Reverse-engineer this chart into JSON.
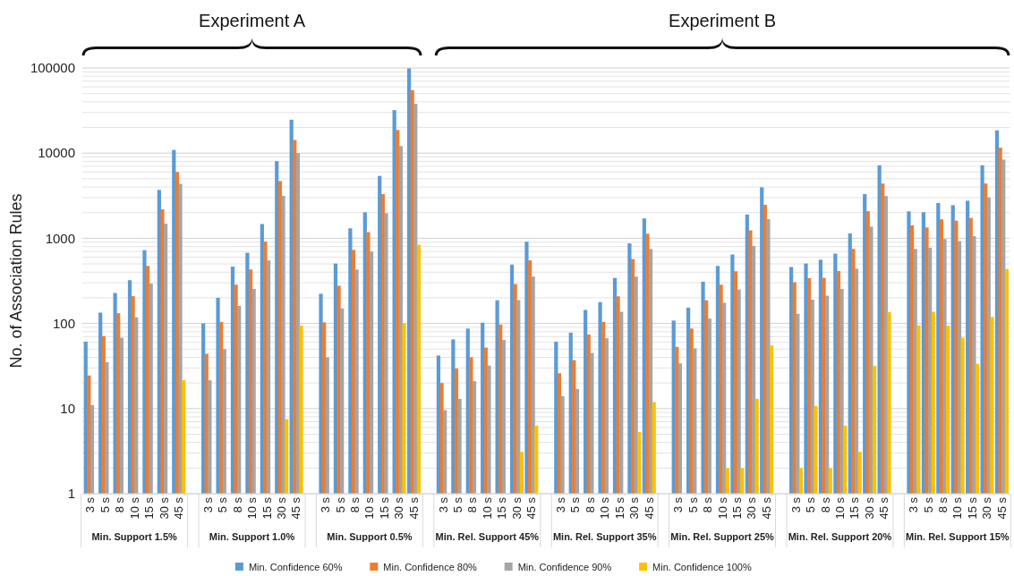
{
  "chart_data": {
    "type": "bar",
    "ylabel": "No. of Association Rules",
    "categories": [
      "3 s",
      "5 s",
      "8 s",
      "10 s",
      "15 s",
      "30 s",
      "45 s",
      null,
      "3 s",
      "5 s",
      "8 s",
      "10 s",
      "15 s",
      "30 s",
      "45 s",
      null,
      "3 s",
      "5 s",
      "8 s",
      "10 s",
      "15 s",
      "30 s",
      "45 s",
      null,
      "3 s",
      "5 s",
      "8 s",
      "10 s",
      "15 s",
      "30 s",
      "45 s",
      null,
      "3 s",
      "5 s",
      "8 s",
      "10 s",
      "15 s",
      "30 s",
      "45 s",
      null,
      "3 s",
      "5 s",
      "8 s",
      "10 s",
      "15 s",
      "30 s",
      "45 s",
      null,
      "3 s",
      "5 s",
      "8 s",
      "10 s",
      "15 s",
      "30 s",
      "45 s",
      null,
      "3 s",
      "5 s",
      "8 s",
      "10 s",
      "15 s",
      "30 s",
      "45 s"
    ],
    "series": [
      {
        "name": "Min. Confidence 60%",
        "color": "#5b9bd5",
        "values": [
          61,
          134,
          228,
          322,
          725,
          3700,
          10900,
          null,
          100,
          200,
          465,
          675,
          1470,
          8050,
          24700,
          null,
          223,
          505,
          1310,
          2020,
          5400,
          32000,
          99000,
          null,
          42,
          65,
          87,
          102,
          187,
          490,
          910,
          null,
          61,
          78,
          144,
          178,
          342,
          870,
          1710,
          null,
          108,
          153,
          309,
          473,
          645,
          1900,
          3970,
          null,
          460,
          505,
          560,
          660,
          1140,
          3300,
          7200,
          null,
          2070,
          2020,
          2600,
          2450,
          2760,
          7200,
          18500
        ]
      },
      {
        "name": "Min. Confidence 80%",
        "color": "#ed7d31",
        "values": [
          24.5,
          71,
          132,
          209,
          473,
          2190,
          6000,
          null,
          44,
          104,
          285,
          430,
          915,
          4700,
          14250,
          null,
          103,
          277,
          730,
          1180,
          3300,
          18700,
          55000,
          null,
          20,
          29.5,
          40,
          52,
          97,
          290,
          550,
          null,
          26,
          37,
          74,
          104,
          208,
          570,
          1130,
          null,
          53,
          87,
          187,
          285,
          410,
          1240,
          2470,
          null,
          305,
          340,
          343,
          412,
          750,
          2080,
          4400,
          null,
          1420,
          1340,
          1670,
          1610,
          1730,
          4400,
          11600
        ]
      },
      {
        "name": "Min. Confidence 90%",
        "color": "#a5a5a5",
        "values": [
          11,
          35,
          68,
          118,
          294,
          1480,
          4350,
          null,
          21.5,
          50,
          161,
          255,
          550,
          3150,
          10000,
          null,
          40,
          150,
          430,
          700,
          1970,
          12100,
          38000,
          null,
          9.6,
          13,
          21,
          32,
          64,
          188,
          355,
          null,
          14,
          17,
          45,
          67,
          137,
          355,
          750,
          null,
          34,
          51,
          114,
          175,
          250,
          815,
          1680,
          null,
          130,
          190,
          212,
          255,
          440,
          1370,
          3130,
          null,
          750,
          775,
          980,
          925,
          1060,
          3020,
          8400
        ]
      },
      {
        "name": "Min. Confidence 100%",
        "color": "#ffc000",
        "values": [
          null,
          null,
          null,
          null,
          null,
          null,
          21.5,
          null,
          null,
          null,
          null,
          null,
          null,
          7.5,
          94,
          null,
          null,
          null,
          null,
          null,
          null,
          100,
          840,
          null,
          null,
          null,
          null,
          null,
          null,
          3.1,
          6.3,
          null,
          null,
          null,
          null,
          null,
          null,
          5.3,
          11.9,
          null,
          null,
          null,
          null,
          2,
          2,
          13,
          55,
          null,
          2,
          10.7,
          2,
          6.3,
          3.1,
          31.6,
          136,
          null,
          95,
          137,
          94,
          68,
          33.5,
          119,
          435
        ]
      }
    ],
    "log": "y",
    "ylim": [
      1,
      100000
    ],
    "yticks": [
      1,
      10,
      100,
      1000,
      10000,
      100000
    ],
    "grid": "y",
    "legend": "bottom",
    "annotations": [
      "Min. Support 1.5%",
      "Min. Support 1.0%",
      "Min. Support 0.5%",
      "Min. Rel. Support 45%",
      "Min. Rel. Support 35%",
      "Min. Rel. Support 25%",
      "Min. Rel. Support 20%",
      "Min. Rel. Support 15%",
      "Experiment A",
      "Experiment B"
    ]
  }
}
